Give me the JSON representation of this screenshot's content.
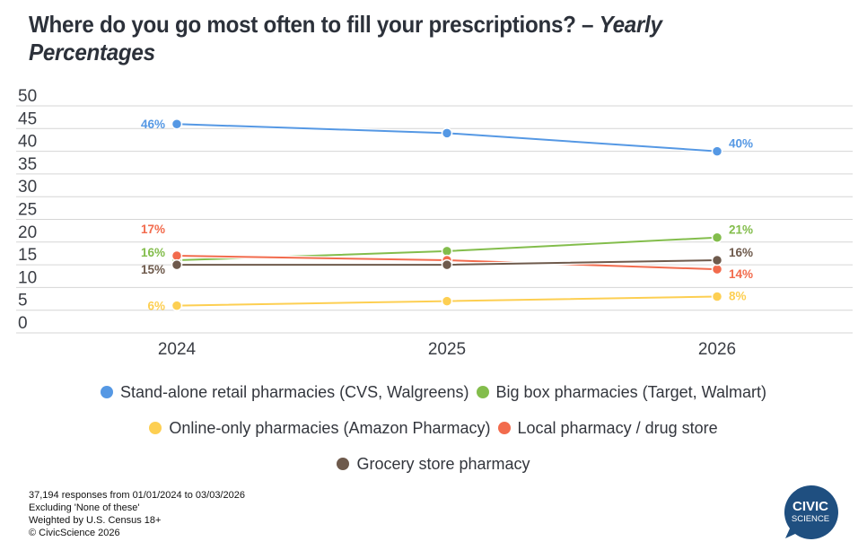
{
  "title": {
    "main": "Where do you go most often to fill your prescriptions? – ",
    "italic": "Yearly Percentages"
  },
  "chart_data": {
    "type": "line",
    "title": "Where do you go most often to fill your prescriptions? – Yearly Percentages",
    "xlabel": "",
    "ylabel": "",
    "x": [
      "2024",
      "2025",
      "2026"
    ],
    "ylim": [
      0,
      50
    ],
    "yticks": [
      50,
      45,
      40,
      35,
      30,
      25,
      20,
      15,
      10,
      5,
      0
    ],
    "grid": true,
    "legend_position": "bottom",
    "series": [
      {
        "name": "Stand-alone retail pharmacies (CVS, Walgreens)",
        "color": "#5598e4",
        "values": [
          46,
          44,
          40
        ],
        "labels": [
          "46%",
          "",
          "40%"
        ]
      },
      {
        "name": "Big box pharmacies (Target, Walmart)",
        "color": "#83bd4c",
        "values": [
          16,
          18,
          21
        ],
        "labels": [
          "16%",
          "",
          "21%"
        ]
      },
      {
        "name": "Online-only pharmacies (Amazon Pharmacy)",
        "color": "#fdcf52",
        "values": [
          6,
          7,
          8
        ],
        "labels": [
          "6%",
          "",
          "8%"
        ]
      },
      {
        "name": "Local pharmacy / drug store",
        "color": "#f26b4d",
        "values": [
          17,
          16,
          14
        ],
        "labels": [
          "17%",
          "",
          "14%"
        ]
      },
      {
        "name": "Grocery store pharmacy",
        "color": "#6e5a4c",
        "values": [
          15,
          15,
          16
        ],
        "labels": [
          "15%",
          "",
          "16%"
        ]
      }
    ]
  },
  "legend": {
    "rows": [
      [
        0,
        1
      ],
      [
        2,
        3
      ],
      [
        4
      ]
    ]
  },
  "footnote": [
    "37,194 responses from 01/01/2024 to 03/03/2026",
    "Excluding 'None of these'",
    "Weighted by U.S. Census 18+",
    "© CivicScience 2026"
  ],
  "logo": {
    "line1": "CIVIC",
    "line2": "SCIENCE",
    "color": "#1f4f80"
  }
}
